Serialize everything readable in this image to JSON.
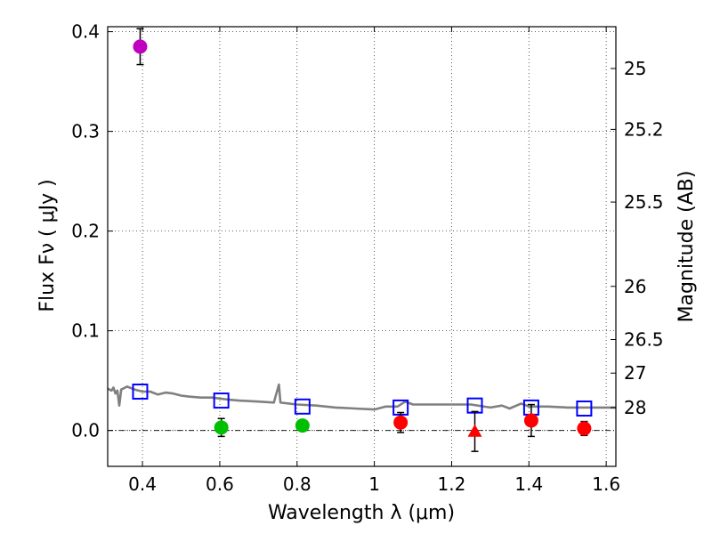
{
  "chart_data": {
    "type": "scatter",
    "xlabel": "Wavelength  λ (μm)",
    "ylabel": "Flux  Fν  ( μJy )",
    "y2label": "Magnitude (AB)",
    "xlim": [
      0.31,
      1.625
    ],
    "ylim": [
      -0.036,
      0.405
    ],
    "grid": true,
    "x_ticks": [
      0.4,
      0.6,
      0.8,
      1.0,
      1.2,
      1.4,
      1.6
    ],
    "x_tick_labels": [
      "0.4",
      "0.6",
      "0.8",
      "1",
      "1.2",
      "1.4",
      "1.6"
    ],
    "y_ticks": [
      0.0,
      0.1,
      0.2,
      0.3,
      0.4
    ],
    "y_tick_labels": [
      "0.0",
      "0.1",
      "0.2",
      "0.3",
      "0.4"
    ],
    "mag_ticks": [
      25,
      25.2,
      25.5,
      26,
      26.5,
      27,
      28
    ],
    "mag_tick_labels": [
      "25",
      "25.2",
      "25.5",
      "26",
      "26.5",
      "27",
      "28"
    ],
    "colors": {
      "magenta": "#bf00bf",
      "green": "#00bf00",
      "red": "#ff0000",
      "model_square": "#0000ff",
      "template_line": "#808080"
    },
    "photometry": [
      {
        "x": 0.394,
        "y": 0.385,
        "err": 0.018,
        "color": "magenta",
        "marker": "circle"
      },
      {
        "x": 0.604,
        "y": 0.003,
        "err": 0.009,
        "color": "green",
        "marker": "circle"
      },
      {
        "x": 0.814,
        "y": 0.005,
        "err": 0.005,
        "color": "green",
        "marker": "circle"
      },
      {
        "x": 1.068,
        "y": 0.008,
        "err": 0.01,
        "color": "red",
        "marker": "circle"
      },
      {
        "x": 1.26,
        "y": -0.001,
        "err": 0.02,
        "color": "red",
        "marker": "triangle"
      },
      {
        "x": 1.406,
        "y": 0.01,
        "err": 0.016,
        "color": "red",
        "marker": "circle"
      },
      {
        "x": 1.543,
        "y": 0.002,
        "err": 0.007,
        "color": "red",
        "marker": "circle"
      }
    ],
    "model_points": [
      {
        "x": 0.394,
        "y": 0.039
      },
      {
        "x": 0.604,
        "y": 0.03
      },
      {
        "x": 0.814,
        "y": 0.024
      },
      {
        "x": 1.068,
        "y": 0.023
      },
      {
        "x": 1.26,
        "y": 0.025
      },
      {
        "x": 1.406,
        "y": 0.023
      },
      {
        "x": 1.543,
        "y": 0.022
      }
    ],
    "template_spectrum": [
      [
        0.31,
        0.042
      ],
      [
        0.32,
        0.04
      ],
      [
        0.325,
        0.043
      ],
      [
        0.33,
        0.037
      ],
      [
        0.335,
        0.04
      ],
      [
        0.34,
        0.025
      ],
      [
        0.345,
        0.041
      ],
      [
        0.36,
        0.044
      ],
      [
        0.38,
        0.041
      ],
      [
        0.4,
        0.039
      ],
      [
        0.42,
        0.039
      ],
      [
        0.44,
        0.036
      ],
      [
        0.46,
        0.038
      ],
      [
        0.48,
        0.037
      ],
      [
        0.5,
        0.035
      ],
      [
        0.52,
        0.034
      ],
      [
        0.55,
        0.033
      ],
      [
        0.58,
        0.033
      ],
      [
        0.6,
        0.032
      ],
      [
        0.62,
        0.031
      ],
      [
        0.65,
        0.03
      ],
      [
        0.7,
        0.029
      ],
      [
        0.74,
        0.028
      ],
      [
        0.753,
        0.046
      ],
      [
        0.757,
        0.028
      ],
      [
        0.8,
        0.026
      ],
      [
        0.85,
        0.025
      ],
      [
        0.9,
        0.023
      ],
      [
        0.95,
        0.022
      ],
      [
        1.0,
        0.021
      ],
      [
        1.03,
        0.024
      ],
      [
        1.06,
        0.024
      ],
      [
        1.08,
        0.029
      ],
      [
        1.1,
        0.026
      ],
      [
        1.15,
        0.026
      ],
      [
        1.2,
        0.026
      ],
      [
        1.25,
        0.026
      ],
      [
        1.3,
        0.023
      ],
      [
        1.33,
        0.025
      ],
      [
        1.35,
        0.022
      ],
      [
        1.38,
        0.027
      ],
      [
        1.4,
        0.024
      ],
      [
        1.45,
        0.024
      ],
      [
        1.5,
        0.023
      ],
      [
        1.55,
        0.023
      ],
      [
        1.625,
        0.023
      ]
    ]
  }
}
